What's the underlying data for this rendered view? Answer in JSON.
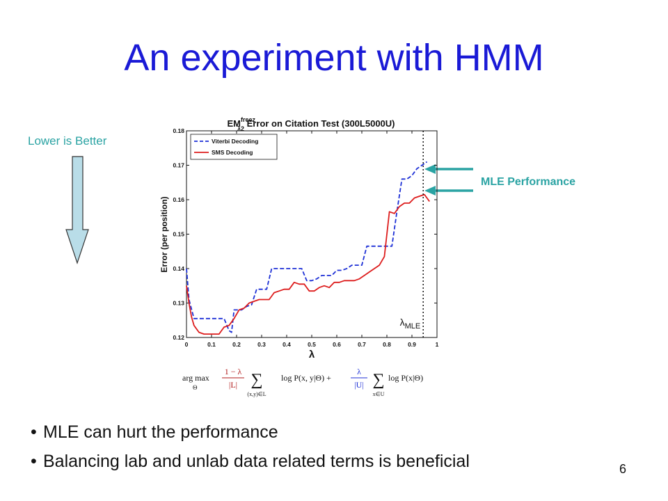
{
  "slide": {
    "title": "An experiment with HMM",
    "lower_is_better": "Lower is Better",
    "mle_label": "MLE  Performance",
    "bullets": [
      "MLE can hurt the performance",
      "Balancing lab and unlab data related terms is beneficial"
    ],
    "page_number": "6",
    "colors": {
      "title": "#1a1ad6",
      "teal": "#2aa3a3",
      "arrow_fill": "#b9dde8"
    }
  },
  "chart_data": {
    "type": "line",
    "title_prefix": "EM",
    "title_sup": "freez",
    "title_sub": "λ2",
    "title_rest": " Error on Citation Test (300L5000U)",
    "xlabel": "λ",
    "ylabel": "Error (per position)",
    "xlim": [
      0,
      1
    ],
    "ylim": [
      0.12,
      0.18
    ],
    "xticks": [
      "0",
      "0.1",
      "0.2",
      "0.3",
      "0.4",
      "0.5",
      "0.6",
      "0.7",
      "0.8",
      "0.9",
      "1"
    ],
    "yticks": [
      "0.12",
      "0.13",
      "0.14",
      "0.15",
      "0.16",
      "0.17",
      "0.18"
    ],
    "legend_position": "top-left",
    "mle_marker": {
      "x": 0.945,
      "label": "λ",
      "label_sub": "MLE"
    },
    "formula": {
      "argmax": "arg max",
      "theta": "Θ",
      "frac1_num": "1 − λ",
      "frac1_den": "|L|",
      "sum1_sub": "(x,y)∈L",
      "term1": "log P(x, y|Θ) +",
      "frac2_num": "λ",
      "frac2_den": "|U|",
      "sum2_sub": "x∈U",
      "term2": "log P(x|Θ)"
    },
    "series": [
      {
        "name": "Viterbi Decoding",
        "color": "#1c2fd6",
        "dash": true,
        "x": [
          0,
          0.01,
          0.03,
          0.05,
          0.07,
          0.09,
          0.11,
          0.13,
          0.15,
          0.17,
          0.18,
          0.19,
          0.2,
          0.22,
          0.24,
          0.26,
          0.28,
          0.3,
          0.32,
          0.34,
          0.36,
          0.38,
          0.4,
          0.42,
          0.44,
          0.46,
          0.48,
          0.5,
          0.52,
          0.54,
          0.56,
          0.58,
          0.6,
          0.62,
          0.64,
          0.66,
          0.68,
          0.7,
          0.72,
          0.74,
          0.76,
          0.78,
          0.8,
          0.82,
          0.84,
          0.86,
          0.88,
          0.9,
          0.92,
          0.94,
          0.96
        ],
        "y": [
          0.14,
          0.131,
          0.1255,
          0.1255,
          0.1255,
          0.1255,
          0.1255,
          0.1255,
          0.1255,
          0.122,
          0.1215,
          0.128,
          0.128,
          0.128,
          0.129,
          0.1295,
          0.134,
          0.134,
          0.134,
          0.14,
          0.14,
          0.14,
          0.14,
          0.14,
          0.14,
          0.14,
          0.1365,
          0.1365,
          0.137,
          0.138,
          0.138,
          0.138,
          0.1395,
          0.1395,
          0.14,
          0.141,
          0.141,
          0.141,
          0.1465,
          0.1465,
          0.1465,
          0.1465,
          0.1465,
          0.1465,
          0.1565,
          0.166,
          0.166,
          0.167,
          0.169,
          0.17,
          0.171
        ]
      },
      {
        "name": "SMS Decoding",
        "color": "#dd1c1c",
        "dash": false,
        "x": [
          0,
          0.01,
          0.02,
          0.03,
          0.05,
          0.07,
          0.09,
          0.11,
          0.13,
          0.15,
          0.17,
          0.19,
          0.21,
          0.23,
          0.25,
          0.27,
          0.29,
          0.31,
          0.33,
          0.35,
          0.37,
          0.39,
          0.41,
          0.43,
          0.45,
          0.47,
          0.49,
          0.51,
          0.53,
          0.55,
          0.57,
          0.59,
          0.61,
          0.63,
          0.65,
          0.67,
          0.69,
          0.71,
          0.73,
          0.75,
          0.77,
          0.79,
          0.81,
          0.83,
          0.85,
          0.87,
          0.89,
          0.91,
          0.93,
          0.95,
          0.97
        ],
        "y": [
          0.135,
          0.13,
          0.126,
          0.1235,
          0.1215,
          0.121,
          0.121,
          0.121,
          0.121,
          0.123,
          0.1235,
          0.1255,
          0.128,
          0.1285,
          0.13,
          0.1305,
          0.131,
          0.131,
          0.131,
          0.133,
          0.1335,
          0.134,
          0.134,
          0.136,
          0.1355,
          0.1355,
          0.1335,
          0.1335,
          0.1345,
          0.135,
          0.1345,
          0.136,
          0.136,
          0.1365,
          0.1365,
          0.1365,
          0.137,
          0.138,
          0.139,
          0.14,
          0.141,
          0.1435,
          0.1565,
          0.156,
          0.158,
          0.159,
          0.159,
          0.1605,
          0.161,
          0.1615,
          0.1595
        ]
      }
    ]
  }
}
